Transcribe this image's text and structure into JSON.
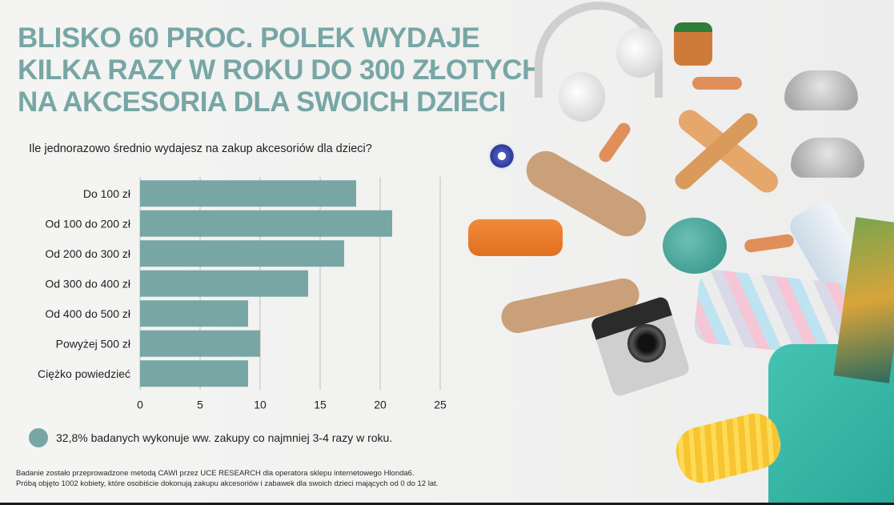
{
  "theme": {
    "accent": "#77a6a5",
    "bar_color": "#77a6a5"
  },
  "title_lines": [
    "BLISKO 60 PROC. POLEK WYDAJE",
    "KILKA RAZY W ROKU DO 300 ZŁOTYCH",
    "NA AKCESORIA DLA SWOICH DZIECI"
  ],
  "question": "Ile jednorazowo średnio wydajesz na zakup akcesoriów dla dzieci?",
  "chart_data": {
    "type": "bar",
    "orientation": "horizontal",
    "categories": [
      "Do 100 zł",
      "Od 100 do 200 zł",
      "Od 200 do 300 zł",
      "Od 300 do 400 zł",
      "Od 400 do 500 zł",
      "Powyżej 500 zł",
      "Ciężko powiedzieć"
    ],
    "values": [
      18,
      21,
      17,
      14,
      9,
      10,
      9
    ],
    "xlim": [
      0,
      25
    ],
    "xticks": [
      "0",
      "5",
      "10",
      "15",
      "20",
      "25"
    ],
    "grid": true
  },
  "legend": {
    "text": "32,8% badanych wykonuje ww. zakupy  co najmniej 3-4 razy w roku."
  },
  "footnote": {
    "line1": "Badanie zostało przeprowadzone metodą CAWI przez UCE RESEARCH dla operatora sklepu internetowego Hlonda6.",
    "line2": "Próbą objęto 1002 kobiety, które osobiście dokonują zakupu akcesoriów i zabawek dla swoich dzieci mających od 0 do 12 lat."
  },
  "illustration": {
    "items": [
      "headphones-icon",
      "baby-food-jar-icon",
      "bandage-icon",
      "baby-shoe-icon",
      "wooden-plane-icon",
      "badge-icon",
      "bunny-toy-icon",
      "juice-bottle-icon",
      "octopus-toy-icon",
      "pencil-case-icon",
      "camera-icon",
      "backpack-icon",
      "sock-icon",
      "book-icon",
      "water-bottle-icon"
    ]
  }
}
